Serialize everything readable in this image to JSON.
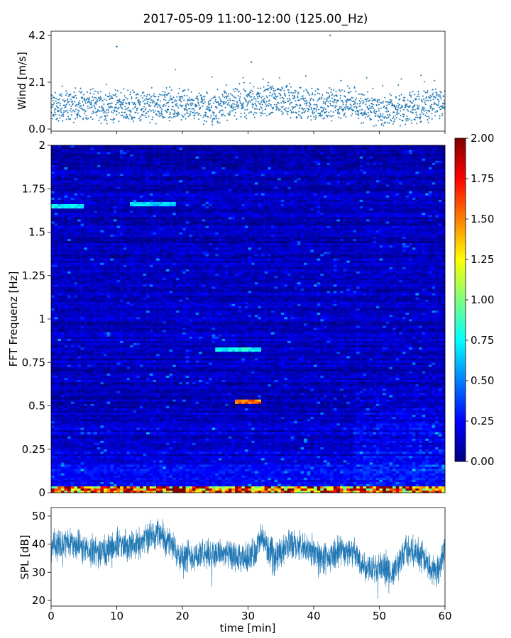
{
  "title": "2017-05-09 11:00-12:00 (125.00_Hz)",
  "colors": {
    "wind_marker": "#1f77b4",
    "spl_line": "#1f77b4",
    "colormap": [
      "#00007f",
      "#0000ff",
      "#007fff",
      "#00ffff",
      "#7fff7f",
      "#ffff00",
      "#ff7f00",
      "#ff0000",
      "#7f0000"
    ]
  },
  "chart_data": [
    {
      "id": "wind",
      "type": "scatter",
      "ylabel": "Wind [m/s]",
      "xlim": [
        0,
        60
      ],
      "ylim": [
        0,
        4.2
      ],
      "yticks": [
        0.0,
        2.1,
        4.2
      ],
      "ytick_labels": [
        "0.0",
        "2.1",
        "4.2"
      ],
      "x_unit": "min",
      "wind_profile": {
        "x": [
          0,
          5,
          10,
          15,
          20,
          25,
          30,
          35,
          40,
          45,
          50,
          55,
          60
        ],
        "y": [
          0.9,
          1.1,
          1.0,
          1.0,
          1.1,
          0.9,
          1.2,
          1.3,
          1.0,
          1.2,
          0.8,
          0.9,
          1.2
        ]
      },
      "outliers": [
        {
          "x": 10,
          "y": 3.7
        },
        {
          "x": 42.5,
          "y": 4.2
        },
        {
          "x": 30.5,
          "y": 3.0
        }
      ]
    },
    {
      "id": "spectrogram",
      "type": "heatmap",
      "ylabel": "FFT Frequenz [Hz]",
      "xlim": [
        0,
        60
      ],
      "ylim": [
        0,
        2
      ],
      "yticks": [
        0,
        0.25,
        0.5,
        0.75,
        1,
        1.25,
        1.5,
        1.75,
        2
      ],
      "ytick_labels": [
        "0",
        "0.25",
        "0.5",
        "0.75",
        "1",
        "1.25",
        "1.5",
        "1.75",
        "2"
      ],
      "colorbar": {
        "range": [
          0,
          2
        ],
        "ticks": [
          "0.00",
          "0.25",
          "0.50",
          "0.75",
          "1.00",
          "1.25",
          "1.50",
          "1.75",
          "2.00"
        ]
      },
      "features": [
        {
          "freq": 0.53,
          "t_start": 28,
          "t_end": 32,
          "value": 1.7
        },
        {
          "freq": 0.82,
          "t_start": 25,
          "t_end": 32,
          "value": 0.85
        },
        {
          "freq": 1.65,
          "t_start": 0,
          "t_end": 5,
          "value": 0.8
        },
        {
          "freq": 1.66,
          "t_start": 12,
          "t_end": 19,
          "value": 0.75
        },
        {
          "freq": 0.02,
          "t_start": 0,
          "t_end": 60,
          "value": 2.0
        }
      ]
    },
    {
      "id": "spl",
      "type": "line",
      "ylabel": "SPL [dB]",
      "xlabel": "time [min]",
      "xlim": [
        0,
        60
      ],
      "ylim": [
        18,
        53
      ],
      "yticks": [
        20,
        30,
        40,
        50
      ],
      "ytick_labels": [
        "20",
        "30",
        "40",
        "50"
      ],
      "xticks": [
        0,
        10,
        20,
        30,
        40,
        50,
        60
      ],
      "xtick_labels": [
        "0",
        "10",
        "20",
        "30",
        "40",
        "50",
        "60"
      ],
      "spl_profile": {
        "x": [
          0,
          3,
          5,
          8,
          10,
          13,
          16,
          17,
          18,
          20,
          23,
          26,
          29,
          31,
          32,
          34,
          36,
          38,
          40,
          42,
          44,
          46,
          48,
          50,
          52,
          54,
          56,
          58,
          59,
          60
        ],
        "y": [
          39,
          41,
          38,
          37,
          40,
          40,
          44,
          43,
          40,
          36,
          36,
          37,
          34,
          37,
          42,
          35,
          40,
          39,
          37,
          34,
          38,
          37,
          32,
          32,
          29,
          38,
          37,
          31,
          31,
          39
        ]
      }
    }
  ]
}
